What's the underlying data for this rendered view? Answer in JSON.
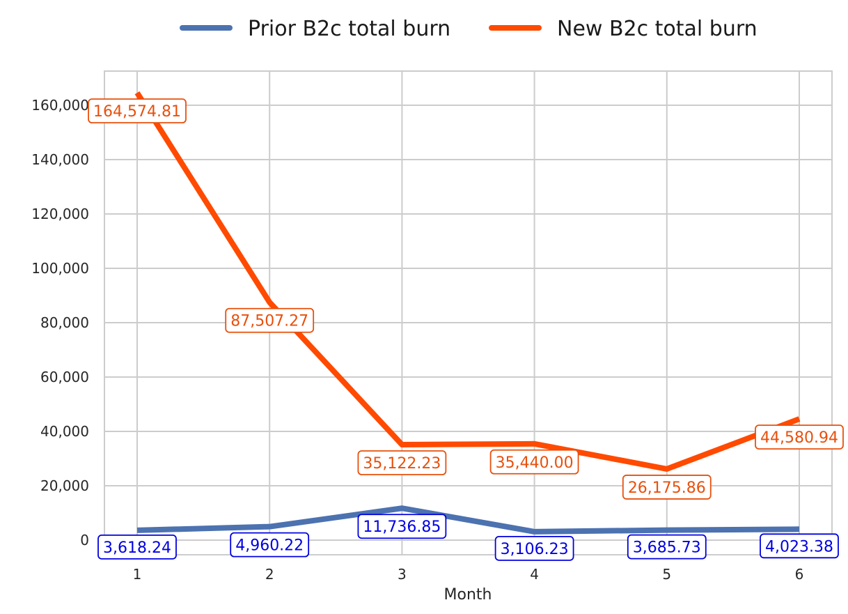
{
  "chart_data": {
    "type": "line",
    "title": "",
    "xlabel": "Month",
    "ylabel": "",
    "x": [
      1,
      2,
      3,
      4,
      5,
      6
    ],
    "x_tick_labels": [
      "1",
      "2",
      "3",
      "4",
      "5",
      "6"
    ],
    "ylim": [
      -5000,
      172000
    ],
    "y_ticks": [
      0,
      20000,
      40000,
      60000,
      80000,
      100000,
      120000,
      140000,
      160000
    ],
    "y_tick_labels": [
      "0",
      "20,000",
      "40,000",
      "60,000",
      "80,000",
      "100,000",
      "120,000",
      "140,000",
      "160,000"
    ],
    "grid": true,
    "legend_position": "top-center",
    "series": [
      {
        "name": "Prior B2c total burn",
        "color": "#4c72b0",
        "label_color": "#0000e0",
        "values": [
          3618.24,
          4960.22,
          11736.85,
          3106.23,
          3685.73,
          4023.38
        ],
        "labels": [
          "3,618.24",
          "4,960.22",
          "11,736.85",
          "3,106.23",
          "3,685.73",
          "4,023.38"
        ]
      },
      {
        "name": "New B2c total burn",
        "color": "#ff4a00",
        "label_color": "#e8500c",
        "values": [
          164574.81,
          87507.27,
          35122.23,
          35440.0,
          26175.86,
          44580.94
        ],
        "labels": [
          "164,574.81",
          "87,507.27",
          "35,122.23",
          "35,440.00",
          "26,175.86",
          "44,580.94"
        ]
      }
    ]
  }
}
